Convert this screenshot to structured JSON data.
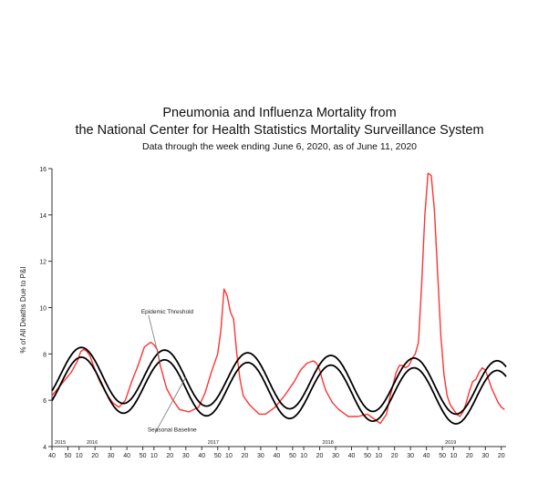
{
  "chart_data": {
    "type": "line",
    "title": "Pneumonia and Influenza Mortality from",
    "title_line2": "the National Center for Health Statistics Mortality Surveillance System",
    "subtitle": "Data through the week ending June 6, 2020, as of June 11, 2020",
    "ylabel": "% of All Deaths Due to P&I",
    "xlabel": "",
    "ylim": [
      4,
      16
    ],
    "yticks": [
      4,
      6,
      8,
      10,
      12,
      14,
      16
    ],
    "xlim": [
      0,
      285
    ],
    "xticks": [
      {
        "x": 0,
        "label": "40"
      },
      {
        "x": 10,
        "label": "50"
      },
      {
        "x": 17,
        "label": "10"
      },
      {
        "x": 27,
        "label": "20"
      },
      {
        "x": 37,
        "label": "30"
      },
      {
        "x": 47,
        "label": "40"
      },
      {
        "x": 57,
        "label": "50"
      },
      {
        "x": 64,
        "label": "10"
      },
      {
        "x": 74,
        "label": "20"
      },
      {
        "x": 84,
        "label": "30"
      },
      {
        "x": 94,
        "label": "40"
      },
      {
        "x": 104,
        "label": "50"
      },
      {
        "x": 111,
        "label": "10"
      },
      {
        "x": 121,
        "label": "20"
      },
      {
        "x": 131,
        "label": "30"
      },
      {
        "x": 141,
        "label": "40"
      },
      {
        "x": 151,
        "label": "50"
      },
      {
        "x": 158,
        "label": "10"
      },
      {
        "x": 168,
        "label": "20"
      },
      {
        "x": 178,
        "label": "30"
      },
      {
        "x": 188,
        "label": "40"
      },
      {
        "x": 198,
        "label": "50"
      },
      {
        "x": 205,
        "label": "10"
      },
      {
        "x": 215,
        "label": "20"
      },
      {
        "x": 225,
        "label": "30"
      },
      {
        "x": 235,
        "label": "40"
      },
      {
        "x": 245,
        "label": "50"
      },
      {
        "x": 252,
        "label": "10"
      },
      {
        "x": 262,
        "label": "20"
      },
      {
        "x": 272,
        "label": "30"
      },
      {
        "x": 282,
        "label": "20"
      }
    ],
    "year_labels": [
      {
        "x": 0,
        "label": "2015"
      },
      {
        "x": 20,
        "label": "2016"
      },
      {
        "x": 96,
        "label": "2017"
      },
      {
        "x": 168,
        "label": "2018"
      },
      {
        "x": 245,
        "label": "2019"
      }
    ],
    "annotations": [
      {
        "text": "Epidemic Threshold",
        "at": {
          "x": 56,
          "y": 9.75
        },
        "points_to": {
          "x": 68,
          "y": 7.6
        }
      },
      {
        "text": "Seasonal Baseline",
        "at": {
          "x": 60,
          "y": 4.65
        },
        "points_to": {
          "x": 84,
          "y": 7.0
        }
      }
    ],
    "grid": false,
    "legend": "none",
    "series": [
      {
        "role": "observed",
        "color": "#ff3333",
        "x": [
          0,
          6,
          12,
          16,
          18,
          20,
          22,
          24,
          26,
          30,
          34,
          38,
          42,
          46,
          50,
          54,
          58,
          62,
          64,
          66,
          68,
          70,
          72,
          76,
          80,
          86,
          92,
          96,
          100,
          104,
          106,
          108,
          110,
          112,
          114,
          116,
          118,
          120,
          124,
          130,
          134,
          140,
          146,
          152,
          156,
          160,
          164,
          166,
          168,
          170,
          172,
          176,
          180,
          186,
          192,
          198,
          202,
          206,
          210,
          212,
          216,
          218,
          220,
          222,
          224,
          226,
          228,
          230,
          232,
          234,
          236,
          238,
          240,
          242,
          244,
          246,
          248,
          250,
          252,
          254,
          256,
          258,
          260,
          262,
          264,
          266,
          268,
          270,
          272,
          274,
          276,
          278,
          280,
          282,
          284
        ],
        "y": [
          6.2,
          6.7,
          7.2,
          7.7,
          8.1,
          8.2,
          8.1,
          7.9,
          7.5,
          6.8,
          6.3,
          5.9,
          5.7,
          6.0,
          6.8,
          7.5,
          8.3,
          8.5,
          8.4,
          8.2,
          7.5,
          7.0,
          6.5,
          6.0,
          5.6,
          5.5,
          5.7,
          6.3,
          7.2,
          8.0,
          9.0,
          10.8,
          10.5,
          9.8,
          9.5,
          8.0,
          6.9,
          6.2,
          5.8,
          5.4,
          5.4,
          5.7,
          6.2,
          6.8,
          7.3,
          7.6,
          7.7,
          7.6,
          7.3,
          6.8,
          6.4,
          5.9,
          5.6,
          5.3,
          5.3,
          5.4,
          5.2,
          5.0,
          5.4,
          6.1,
          7.2,
          7.5,
          7.5,
          7.4,
          7.5,
          7.8,
          8.0,
          8.5,
          11.0,
          14.0,
          15.8,
          15.7,
          14.2,
          11.5,
          8.8,
          7.1,
          6.2,
          5.8,
          5.6,
          5.4,
          5.3,
          5.5,
          5.9,
          6.4,
          6.8,
          6.9,
          7.2,
          7.4,
          7.3,
          6.9,
          6.5,
          6.2,
          5.9,
          5.7,
          5.6
        ]
      },
      {
        "role": "epidemic-threshold",
        "color": "#000000",
        "baseline_mean": 6.72,
        "baseline_amplitude": 1.18,
        "period_weeks": 52.18,
        "peak_week": 18.6,
        "baseline_trend_per_week": -0.0022,
        "threshold_offset": 0.42
      },
      {
        "role": "seasonal-baseline",
        "color": "#000000",
        "baseline_mean": 6.72,
        "baseline_amplitude": 1.18,
        "period_weeks": 52.18,
        "peak_week": 18.6,
        "baseline_trend_per_week": -0.0022
      }
    ]
  }
}
